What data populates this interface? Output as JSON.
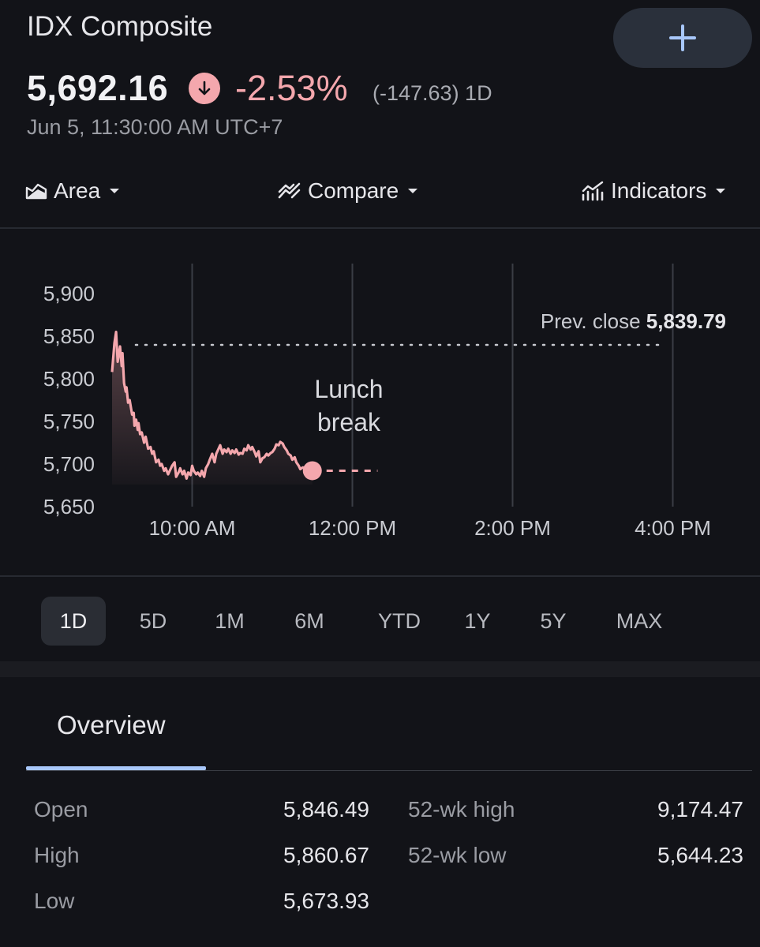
{
  "header": {
    "title": "IDX Composite",
    "add_icon": "plus-icon",
    "price": "5,692.16",
    "change_pct": "-2.53%",
    "change_abs": "(-147.63) 1D",
    "timestamp": "Jun 5, 11:30:00 AM UTC+7",
    "down_color": "#f4a7ad",
    "accent_color": "#a8c7fa"
  },
  "controls": {
    "area_label": "Area",
    "compare_label": "Compare",
    "indicators_label": "Indicators"
  },
  "chart_data": {
    "type": "area",
    "y_ticks": [
      "5,900",
      "5,850",
      "5,800",
      "5,750",
      "5,700",
      "5,650"
    ],
    "y_tick_values": [
      5900,
      5850,
      5800,
      5750,
      5700,
      5650
    ],
    "x_ticks": [
      "10:00 AM",
      "12:00 PM",
      "2:00 PM",
      "4:00 PM"
    ],
    "x_tick_hours": [
      10,
      12,
      14,
      16
    ],
    "ylim": [
      5650,
      5900
    ],
    "xlim_hours": [
      9,
      16
    ],
    "prev_close_label": "Prev. close",
    "prev_close_value": "5,839.79",
    "prev_close": 5839.79,
    "annotation": [
      "Lunch",
      "break"
    ],
    "lunch_break_hours": [
      11.5,
      11.92
    ],
    "line_color": "#f4a7ad",
    "series": [
      {
        "x": [
          9.0,
          9.03,
          9.05,
          9.07,
          9.1,
          9.12,
          9.13,
          9.15,
          9.17,
          9.18,
          9.2,
          9.22,
          9.25,
          9.27,
          9.28,
          9.3,
          9.32,
          9.33,
          9.35,
          9.37,
          9.4,
          9.42,
          9.45,
          9.48,
          9.5,
          9.52,
          9.55,
          9.58,
          9.6,
          9.62,
          9.65,
          9.67,
          9.7,
          9.72,
          9.75,
          9.78,
          9.8,
          9.83,
          9.85,
          9.88,
          9.9,
          9.93,
          9.95,
          9.98,
          10.0,
          10.02,
          10.05,
          10.07,
          10.1,
          10.12,
          10.15,
          10.17,
          10.2,
          10.22,
          10.25,
          10.28,
          10.3,
          10.33,
          10.35,
          10.38,
          10.4,
          10.43,
          10.45,
          10.48,
          10.5,
          10.53,
          10.55,
          10.58,
          10.6,
          10.63,
          10.65,
          10.68,
          10.7,
          10.73,
          10.75,
          10.78,
          10.8,
          10.83,
          10.85,
          10.88,
          10.9,
          10.93,
          10.95,
          10.98,
          11.0,
          11.03,
          11.05,
          11.08,
          11.1,
          11.13,
          11.15,
          11.18,
          11.2,
          11.23,
          11.25,
          11.28,
          11.3,
          11.33,
          11.35,
          11.38,
          11.42,
          11.45,
          11.5
        ],
        "y": [
          5808,
          5842,
          5855,
          5820,
          5838,
          5815,
          5830,
          5795,
          5785,
          5790,
          5772,
          5775,
          5758,
          5760,
          5745,
          5752,
          5740,
          5748,
          5735,
          5737,
          5725,
          5732,
          5718,
          5720,
          5712,
          5715,
          5702,
          5705,
          5698,
          5700,
          5692,
          5695,
          5688,
          5692,
          5698,
          5702,
          5685,
          5690,
          5695,
          5688,
          5692,
          5683,
          5690,
          5687,
          5698,
          5692,
          5688,
          5690,
          5686,
          5692,
          5685,
          5695,
          5700,
          5705,
          5712,
          5702,
          5712,
          5718,
          5722,
          5712,
          5717,
          5714,
          5718,
          5712,
          5716,
          5713,
          5717,
          5711,
          5713,
          5712,
          5718,
          5716,
          5722,
          5717,
          5720,
          5714,
          5709,
          5715,
          5702,
          5707,
          5708,
          5712,
          5710,
          5713,
          5714,
          5718,
          5723,
          5722,
          5726,
          5724,
          5720,
          5716,
          5712,
          5710,
          5705,
          5708,
          5702,
          5698,
          5694,
          5696,
          5695,
          5694,
          5692.16
        ]
      }
    ]
  },
  "ranges": [
    "1D",
    "5D",
    "1M",
    "6M",
    "YTD",
    "1Y",
    "5Y",
    "MAX"
  ],
  "active_range": "1D",
  "tabs": {
    "overview": "Overview"
  },
  "stats": {
    "open_label": "Open",
    "open": "5,846.49",
    "high_label": "High",
    "high": "5,860.67",
    "low_label": "Low",
    "low": "5,673.93",
    "wk_high_label": "52-wk high",
    "wk_high": "9,174.47",
    "wk_low_label": "52-wk low",
    "wk_low": "5,644.23"
  }
}
